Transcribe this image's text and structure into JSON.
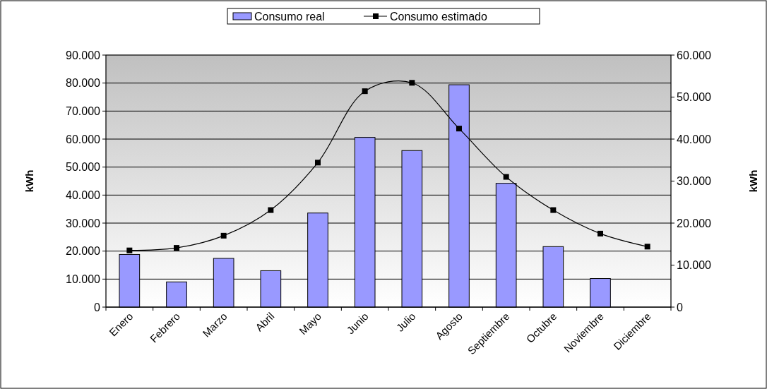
{
  "chart_data": {
    "type": "bar",
    "categories": [
      "Enero",
      "Febrero",
      "Marzo",
      "Abril",
      "Mayo",
      "Junio",
      "Julio",
      "Agosto",
      "Septiembre",
      "Octubre",
      "Noviembre",
      "Diciembre"
    ],
    "series": [
      {
        "name": "Consumo real",
        "color": "#9999ff",
        "values": [
          18800,
          9000,
          17400,
          13000,
          33600,
          60600,
          55900,
          79400,
          44200,
          21600,
          10200,
          null
        ]
      },
      {
        "name": "Consumo estimado",
        "type": "line",
        "axis": "y2",
        "color": "#000000",
        "marker": "square",
        "values": [
          13500,
          14100,
          17000,
          23100,
          34400,
          51400,
          53400,
          42500,
          31000,
          23100,
          17500,
          14400
        ]
      }
    ],
    "ylabel": "kWh",
    "y2label": "kWh",
    "ylim": [
      0,
      90000
    ],
    "yticks": [
      0,
      {
        "value": 10000,
        "label": "10.000"
      },
      {
        "value": 20000,
        "label": "20.000"
      },
      {
        "value": 30000,
        "label": "30.000"
      },
      {
        "value": 40000,
        "label": "40.000"
      },
      {
        "value": 50000,
        "label": "50.000"
      },
      {
        "value": 60000,
        "label": "60.000"
      },
      {
        "value": 70000,
        "label": "70.000"
      },
      {
        "value": 80000,
        "label": "80.000"
      },
      {
        "value": 90000,
        "label": "90.000"
      }
    ],
    "y2lim": [
      0,
      60000
    ],
    "y2ticks": [
      0,
      {
        "value": 10000,
        "label": "10.000"
      },
      {
        "value": 20000,
        "label": "20.000"
      },
      {
        "value": 30000,
        "label": "30.000"
      },
      {
        "value": 40000,
        "label": "40.000"
      },
      {
        "value": 50000,
        "label": "50.000"
      },
      {
        "value": 60000,
        "label": "60.000"
      }
    ],
    "grid": "y",
    "legend": "top"
  }
}
